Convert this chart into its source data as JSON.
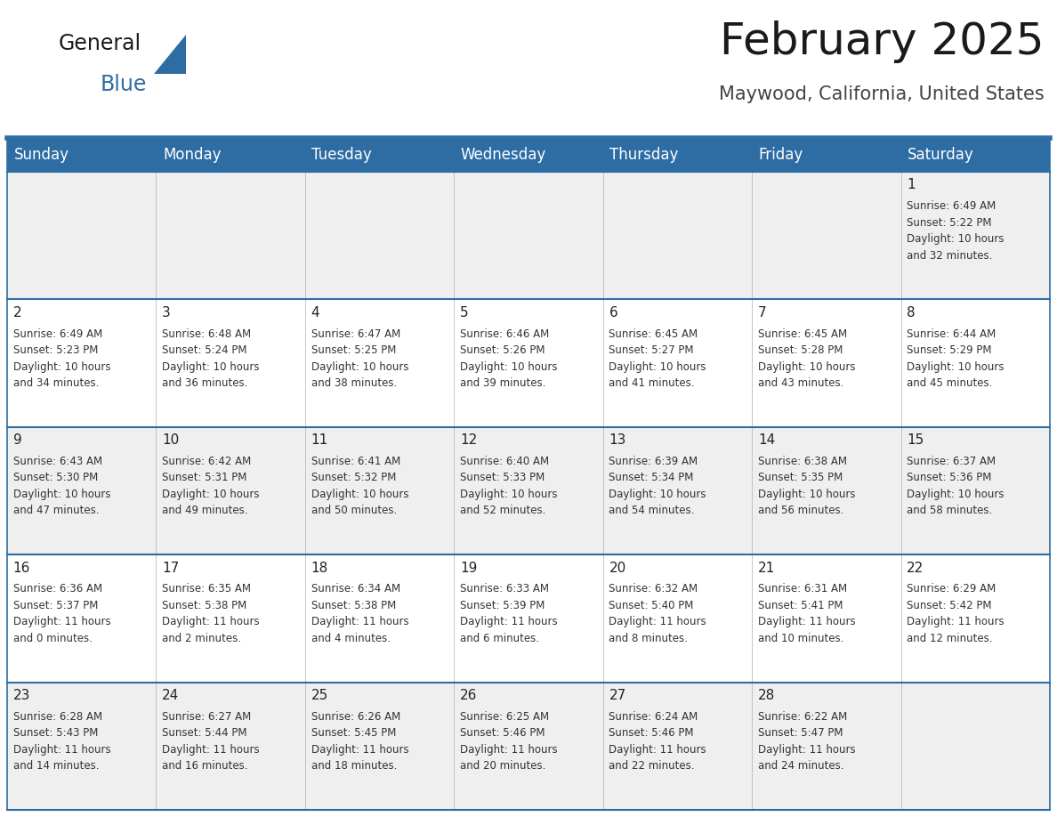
{
  "title": "February 2025",
  "subtitle": "Maywood, California, United States",
  "header_color": "#2E6DA4",
  "header_text_color": "#FFFFFF",
  "background_color": "#FFFFFF",
  "alt_row_color": "#EFEFEF",
  "border_color": "#2E6DA4",
  "day_headers": [
    "Sunday",
    "Monday",
    "Tuesday",
    "Wednesday",
    "Thursday",
    "Friday",
    "Saturday"
  ],
  "title_fontsize": 36,
  "subtitle_fontsize": 15,
  "header_fontsize": 12,
  "cell_day_fontsize": 11,
  "cell_text_fontsize": 8.5,
  "weeks": [
    [
      {
        "day": "",
        "sunrise": "",
        "sunset": "",
        "daylight": ""
      },
      {
        "day": "",
        "sunrise": "",
        "sunset": "",
        "daylight": ""
      },
      {
        "day": "",
        "sunrise": "",
        "sunset": "",
        "daylight": ""
      },
      {
        "day": "",
        "sunrise": "",
        "sunset": "",
        "daylight": ""
      },
      {
        "day": "",
        "sunrise": "",
        "sunset": "",
        "daylight": ""
      },
      {
        "day": "",
        "sunrise": "",
        "sunset": "",
        "daylight": ""
      },
      {
        "day": "1",
        "sunrise": "6:49 AM",
        "sunset": "5:22 PM",
        "daylight": "10 hours\nand 32 minutes."
      }
    ],
    [
      {
        "day": "2",
        "sunrise": "6:49 AM",
        "sunset": "5:23 PM",
        "daylight": "10 hours\nand 34 minutes."
      },
      {
        "day": "3",
        "sunrise": "6:48 AM",
        "sunset": "5:24 PM",
        "daylight": "10 hours\nand 36 minutes."
      },
      {
        "day": "4",
        "sunrise": "6:47 AM",
        "sunset": "5:25 PM",
        "daylight": "10 hours\nand 38 minutes."
      },
      {
        "day": "5",
        "sunrise": "6:46 AM",
        "sunset": "5:26 PM",
        "daylight": "10 hours\nand 39 minutes."
      },
      {
        "day": "6",
        "sunrise": "6:45 AM",
        "sunset": "5:27 PM",
        "daylight": "10 hours\nand 41 minutes."
      },
      {
        "day": "7",
        "sunrise": "6:45 AM",
        "sunset": "5:28 PM",
        "daylight": "10 hours\nand 43 minutes."
      },
      {
        "day": "8",
        "sunrise": "6:44 AM",
        "sunset": "5:29 PM",
        "daylight": "10 hours\nand 45 minutes."
      }
    ],
    [
      {
        "day": "9",
        "sunrise": "6:43 AM",
        "sunset": "5:30 PM",
        "daylight": "10 hours\nand 47 minutes."
      },
      {
        "day": "10",
        "sunrise": "6:42 AM",
        "sunset": "5:31 PM",
        "daylight": "10 hours\nand 49 minutes."
      },
      {
        "day": "11",
        "sunrise": "6:41 AM",
        "sunset": "5:32 PM",
        "daylight": "10 hours\nand 50 minutes."
      },
      {
        "day": "12",
        "sunrise": "6:40 AM",
        "sunset": "5:33 PM",
        "daylight": "10 hours\nand 52 minutes."
      },
      {
        "day": "13",
        "sunrise": "6:39 AM",
        "sunset": "5:34 PM",
        "daylight": "10 hours\nand 54 minutes."
      },
      {
        "day": "14",
        "sunrise": "6:38 AM",
        "sunset": "5:35 PM",
        "daylight": "10 hours\nand 56 minutes."
      },
      {
        "day": "15",
        "sunrise": "6:37 AM",
        "sunset": "5:36 PM",
        "daylight": "10 hours\nand 58 minutes."
      }
    ],
    [
      {
        "day": "16",
        "sunrise": "6:36 AM",
        "sunset": "5:37 PM",
        "daylight": "11 hours\nand 0 minutes."
      },
      {
        "day": "17",
        "sunrise": "6:35 AM",
        "sunset": "5:38 PM",
        "daylight": "11 hours\nand 2 minutes."
      },
      {
        "day": "18",
        "sunrise": "6:34 AM",
        "sunset": "5:38 PM",
        "daylight": "11 hours\nand 4 minutes."
      },
      {
        "day": "19",
        "sunrise": "6:33 AM",
        "sunset": "5:39 PM",
        "daylight": "11 hours\nand 6 minutes."
      },
      {
        "day": "20",
        "sunrise": "6:32 AM",
        "sunset": "5:40 PM",
        "daylight": "11 hours\nand 8 minutes."
      },
      {
        "day": "21",
        "sunrise": "6:31 AM",
        "sunset": "5:41 PM",
        "daylight": "11 hours\nand 10 minutes."
      },
      {
        "day": "22",
        "sunrise": "6:29 AM",
        "sunset": "5:42 PM",
        "daylight": "11 hours\nand 12 minutes."
      }
    ],
    [
      {
        "day": "23",
        "sunrise": "6:28 AM",
        "sunset": "5:43 PM",
        "daylight": "11 hours\nand 14 minutes."
      },
      {
        "day": "24",
        "sunrise": "6:27 AM",
        "sunset": "5:44 PM",
        "daylight": "11 hours\nand 16 minutes."
      },
      {
        "day": "25",
        "sunrise": "6:26 AM",
        "sunset": "5:45 PM",
        "daylight": "11 hours\nand 18 minutes."
      },
      {
        "day": "26",
        "sunrise": "6:25 AM",
        "sunset": "5:46 PM",
        "daylight": "11 hours\nand 20 minutes."
      },
      {
        "day": "27",
        "sunrise": "6:24 AM",
        "sunset": "5:46 PM",
        "daylight": "11 hours\nand 22 minutes."
      },
      {
        "day": "28",
        "sunrise": "6:22 AM",
        "sunset": "5:47 PM",
        "daylight": "11 hours\nand 24 minutes."
      },
      {
        "day": "",
        "sunrise": "",
        "sunset": "",
        "daylight": ""
      }
    ]
  ]
}
